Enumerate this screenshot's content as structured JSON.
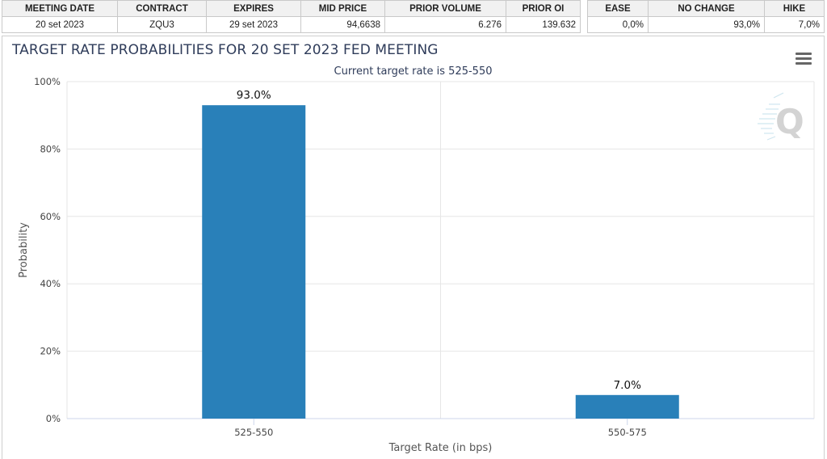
{
  "summary_table": {
    "headers": [
      "MEETING DATE",
      "CONTRACT",
      "EXPIRES",
      "MID PRICE",
      "PRIOR VOLUME",
      "PRIOR OI"
    ],
    "row": [
      "20 set 2023",
      "ZQU3",
      "29 set 2023",
      "94,6638",
      "6.276",
      "139.632"
    ]
  },
  "probability_table": {
    "headers": [
      "EASE",
      "NO CHANGE",
      "HIKE"
    ],
    "row": [
      "0,0%",
      "93,0%",
      "7,0%"
    ]
  },
  "chart": {
    "title": "TARGET RATE PROBABILITIES FOR 20 SET 2023 FED MEETING",
    "subtitle": "Current target rate is 525-550",
    "menu_icon": "hamburger-menu-icon",
    "watermark_icon": "cme-q-logo-icon"
  },
  "chart_data": {
    "type": "bar",
    "title": "TARGET RATE PROBABILITIES FOR 20 SET 2023 FED MEETING",
    "subtitle": "Current target rate is 525-550",
    "categories": [
      "525-550",
      "550-575"
    ],
    "values": [
      93.0,
      7.0
    ],
    "data_labels": [
      "93.0%",
      "7.0%"
    ],
    "xlabel": "Target Rate (in bps)",
    "ylabel": "Probability",
    "ylim": [
      0,
      100
    ],
    "yticks": [
      0,
      20,
      40,
      60,
      80,
      100
    ],
    "ytick_labels": [
      "0%",
      "20%",
      "40%",
      "60%",
      "80%",
      "100%"
    ],
    "grid": true,
    "bar_color": "#2980b9"
  }
}
